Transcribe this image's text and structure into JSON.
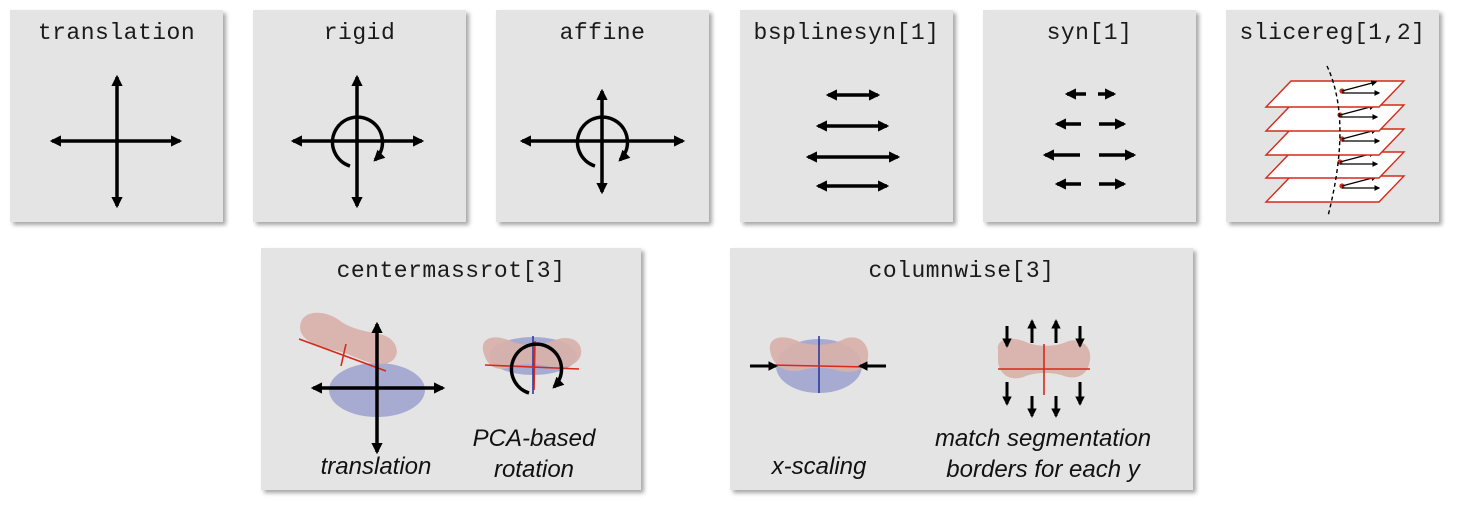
{
  "panels": {
    "translation": {
      "title": "translation"
    },
    "rigid": {
      "title": "rigid"
    },
    "affine": {
      "title": "affine"
    },
    "bsplinesyn": {
      "title": "bsplinesyn[1]"
    },
    "syn": {
      "title": "syn[1]"
    },
    "slicereg": {
      "title": "slicereg[1,2]"
    },
    "centermassrot": {
      "title": "centermassrot[3]",
      "captions": {
        "left": "translation",
        "right_line1": "PCA-based",
        "right_line2": "rotation"
      }
    },
    "columnwise": {
      "title": "columnwise[3]",
      "captions": {
        "left": "x-scaling",
        "right_line1": "match segmentation",
        "right_line2": "borders for each y"
      }
    }
  },
  "colors": {
    "panel_bg": "#e4e4e4",
    "arrow": "#000000",
    "red": "#d42a1a",
    "blue": "#2b3a9e",
    "pink": "#d9b1aa",
    "lavender": "#a7abd1"
  }
}
